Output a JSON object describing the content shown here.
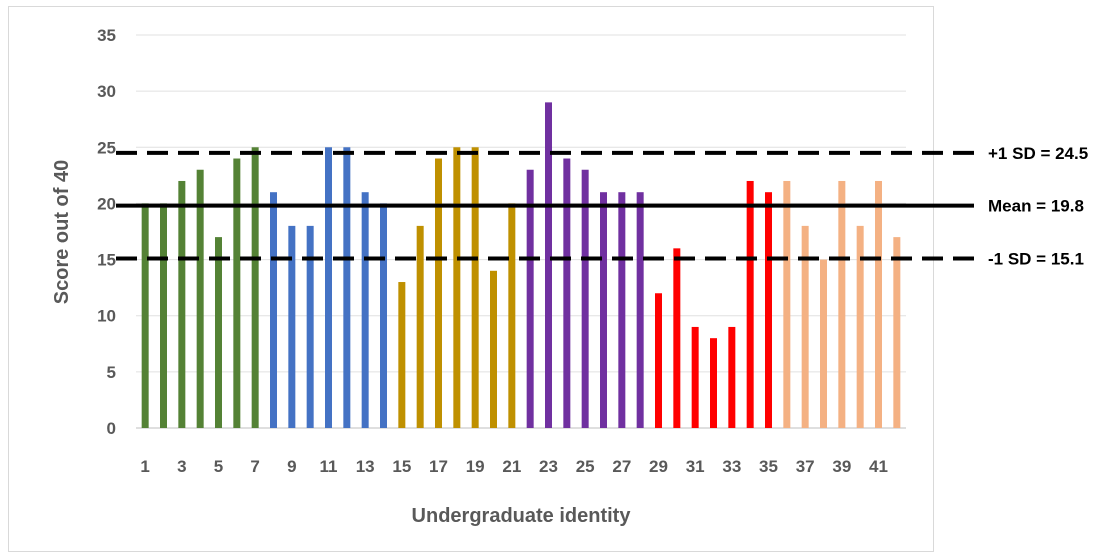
{
  "chart_data": {
    "type": "bar",
    "xlabel": "Undergraduate identity",
    "ylabel": "Score out of 40",
    "ylim": [
      0,
      35
    ],
    "yticks": [
      0,
      5,
      10,
      15,
      20,
      25,
      30,
      35
    ],
    "grid": true,
    "categories": [
      1,
      2,
      3,
      4,
      5,
      6,
      7,
      8,
      9,
      10,
      11,
      12,
      13,
      14,
      15,
      16,
      17,
      18,
      19,
      20,
      21,
      22,
      23,
      24,
      25,
      26,
      27,
      28,
      29,
      30,
      31,
      32,
      33,
      34,
      35,
      36,
      37,
      38,
      39,
      40,
      41,
      42
    ],
    "xtick_labels": [
      "1",
      "3",
      "5",
      "7",
      "9",
      "11",
      "13",
      "15",
      "17",
      "19",
      "21",
      "23",
      "25",
      "27",
      "29",
      "31",
      "33",
      "35",
      "37",
      "39",
      "41"
    ],
    "values": [
      20,
      20,
      22,
      23,
      17,
      24,
      25,
      21,
      18,
      18,
      25,
      25,
      21,
      20,
      13,
      18,
      24,
      25,
      25,
      14,
      20,
      23,
      29,
      24,
      23,
      21,
      21,
      21,
      12,
      16,
      9,
      8,
      9,
      22,
      21,
      22,
      18,
      15,
      22,
      18,
      22,
      17
    ],
    "groups": [
      {
        "from": 1,
        "to": 7,
        "color": "#548235"
      },
      {
        "from": 8,
        "to": 14,
        "color": "#4472c4"
      },
      {
        "from": 15,
        "to": 21,
        "color": "#bf9000"
      },
      {
        "from": 22,
        "to": 28,
        "color": "#7030a0"
      },
      {
        "from": 29,
        "to": 35,
        "color": "#ff0000"
      },
      {
        "from": 36,
        "to": 42,
        "color": "#f4b183"
      }
    ],
    "reference_lines": [
      {
        "label": "+1 SD = 24.5",
        "value": 24.5,
        "style": "dashed"
      },
      {
        "label": "Mean = 19.8",
        "value": 19.8,
        "style": "solid"
      },
      {
        "label": "-1 SD  = 15.1",
        "value": 15.1,
        "style": "dashed"
      }
    ]
  }
}
